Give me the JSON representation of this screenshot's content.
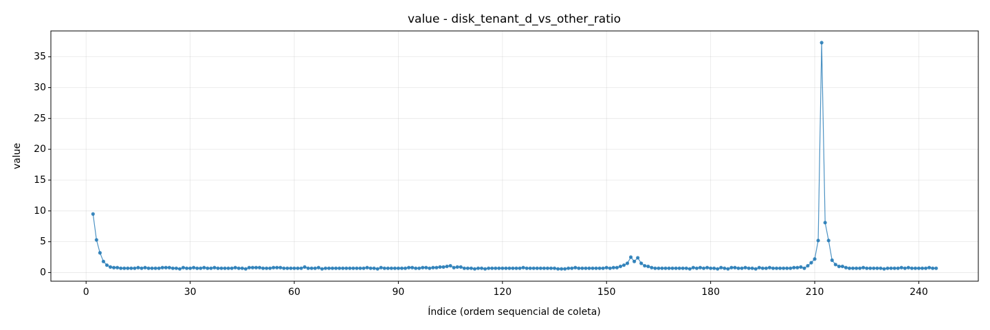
{
  "chart_data": {
    "type": "line",
    "title": "value - disk_tenant_d_vs_other_ratio",
    "x_label": "Índice (ordem sequencial de coleta)",
    "y_label": "value",
    "color": "#1f77b4",
    "grid": true,
    "xlim": [
      -10.15,
      257.15
    ],
    "ylim": [
      -1.4,
      39.2
    ],
    "xticks": [
      0,
      30,
      60,
      90,
      120,
      150,
      180,
      210,
      240
    ],
    "yticks": [
      0,
      5,
      10,
      15,
      20,
      25,
      30,
      35
    ],
    "x": [
      2,
      3,
      4,
      5,
      6,
      7,
      8,
      9,
      10,
      11,
      12,
      13,
      14,
      15,
      16,
      17,
      18,
      19,
      20,
      21,
      22,
      23,
      24,
      25,
      26,
      27,
      28,
      29,
      30,
      31,
      32,
      33,
      34,
      35,
      36,
      37,
      38,
      39,
      40,
      41,
      42,
      43,
      44,
      45,
      46,
      47,
      48,
      49,
      50,
      51,
      52,
      53,
      54,
      55,
      56,
      57,
      58,
      59,
      60,
      61,
      62,
      63,
      64,
      65,
      66,
      67,
      68,
      69,
      70,
      71,
      72,
      73,
      74,
      75,
      76,
      77,
      78,
      79,
      80,
      81,
      82,
      83,
      84,
      85,
      86,
      87,
      88,
      89,
      90,
      91,
      92,
      93,
      94,
      95,
      96,
      97,
      98,
      99,
      100,
      101,
      102,
      103,
      104,
      105,
      106,
      107,
      108,
      109,
      110,
      111,
      112,
      113,
      114,
      115,
      116,
      117,
      118,
      119,
      120,
      121,
      122,
      123,
      124,
      125,
      126,
      127,
      128,
      129,
      130,
      131,
      132,
      133,
      134,
      135,
      136,
      137,
      138,
      139,
      140,
      141,
      142,
      143,
      144,
      145,
      146,
      147,
      148,
      149,
      150,
      151,
      152,
      153,
      154,
      155,
      156,
      157,
      158,
      159,
      160,
      161,
      162,
      163,
      164,
      165,
      166,
      167,
      168,
      169,
      170,
      171,
      172,
      173,
      174,
      175,
      176,
      177,
      178,
      179,
      180,
      181,
      182,
      183,
      184,
      185,
      186,
      187,
      188,
      189,
      190,
      191,
      192,
      193,
      194,
      195,
      196,
      197,
      198,
      199,
      200,
      201,
      202,
      203,
      204,
      205,
      206,
      207,
      208,
      209,
      210,
      211,
      212,
      213,
      214,
      215,
      216,
      217,
      218,
      219,
      220,
      221,
      222,
      223,
      224,
      225,
      226,
      227,
      228,
      229,
      230,
      231,
      232,
      233,
      234,
      235,
      236,
      237,
      238,
      239,
      240,
      241,
      242,
      243,
      244,
      245
    ],
    "values": [
      9.5,
      5.3,
      3.2,
      1.8,
      1.2,
      0.9,
      0.8,
      0.8,
      0.7,
      0.7,
      0.7,
      0.7,
      0.7,
      0.8,
      0.7,
      0.8,
      0.7,
      0.7,
      0.7,
      0.7,
      0.8,
      0.8,
      0.8,
      0.7,
      0.7,
      0.6,
      0.8,
      0.7,
      0.7,
      0.8,
      0.7,
      0.7,
      0.8,
      0.7,
      0.7,
      0.8,
      0.7,
      0.7,
      0.7,
      0.7,
      0.7,
      0.8,
      0.7,
      0.7,
      0.6,
      0.8,
      0.8,
      0.8,
      0.8,
      0.7,
      0.7,
      0.7,
      0.8,
      0.8,
      0.8,
      0.7,
      0.7,
      0.7,
      0.7,
      0.7,
      0.7,
      0.9,
      0.7,
      0.7,
      0.7,
      0.8,
      0.6,
      0.7,
      0.7,
      0.7,
      0.7,
      0.7,
      0.7,
      0.7,
      0.7,
      0.7,
      0.7,
      0.7,
      0.7,
      0.8,
      0.7,
      0.7,
      0.6,
      0.8,
      0.7,
      0.7,
      0.7,
      0.7,
      0.7,
      0.7,
      0.7,
      0.8,
      0.8,
      0.7,
      0.7,
      0.8,
      0.8,
      0.7,
      0.8,
      0.8,
      0.9,
      0.9,
      1.0,
      1.1,
      0.8,
      0.9,
      0.9,
      0.7,
      0.7,
      0.7,
      0.6,
      0.7,
      0.7,
      0.6,
      0.7,
      0.7,
      0.7,
      0.7,
      0.7,
      0.7,
      0.7,
      0.7,
      0.7,
      0.7,
      0.8,
      0.7,
      0.7,
      0.7,
      0.7,
      0.7,
      0.7,
      0.7,
      0.7,
      0.7,
      0.6,
      0.6,
      0.6,
      0.7,
      0.7,
      0.8,
      0.7,
      0.7,
      0.7,
      0.7,
      0.7,
      0.7,
      0.7,
      0.7,
      0.8,
      0.7,
      0.8,
      0.8,
      1.0,
      1.2,
      1.5,
      2.5,
      1.8,
      2.4,
      1.5,
      1.1,
      1.0,
      0.8,
      0.7,
      0.7,
      0.7,
      0.7,
      0.7,
      0.7,
      0.7,
      0.7,
      0.7,
      0.7,
      0.6,
      0.8,
      0.7,
      0.8,
      0.7,
      0.8,
      0.7,
      0.7,
      0.6,
      0.8,
      0.7,
      0.6,
      0.8,
      0.8,
      0.7,
      0.7,
      0.8,
      0.7,
      0.7,
      0.6,
      0.8,
      0.7,
      0.7,
      0.8,
      0.7,
      0.7,
      0.7,
      0.7,
      0.7,
      0.7,
      0.8,
      0.8,
      0.9,
      0.7,
      1.1,
      1.6,
      2.2,
      5.2,
      37.3,
      8.1,
      5.2,
      2.0,
      1.3,
      1.0,
      1.0,
      0.8,
      0.7,
      0.7,
      0.7,
      0.7,
      0.8,
      0.7,
      0.7,
      0.7,
      0.7,
      0.7,
      0.6,
      0.7,
      0.7,
      0.7,
      0.7,
      0.8,
      0.7,
      0.8,
      0.7,
      0.7,
      0.7,
      0.7,
      0.7,
      0.8,
      0.7,
      0.7
    ]
  }
}
